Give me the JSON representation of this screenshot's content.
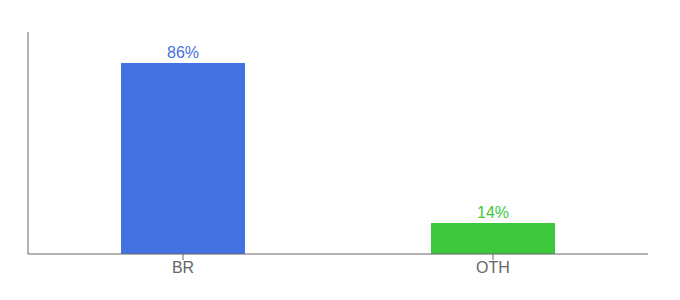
{
  "chart_data": {
    "type": "bar",
    "categories": [
      "BR",
      "OTH"
    ],
    "values": [
      86,
      14
    ],
    "value_labels": [
      "86%",
      "14%"
    ],
    "data_labels": true,
    "colors": [
      "#4472e0",
      "#3dc83d"
    ],
    "ylim": [
      0,
      100
    ],
    "grid": false,
    "tick_labels": "x"
  }
}
